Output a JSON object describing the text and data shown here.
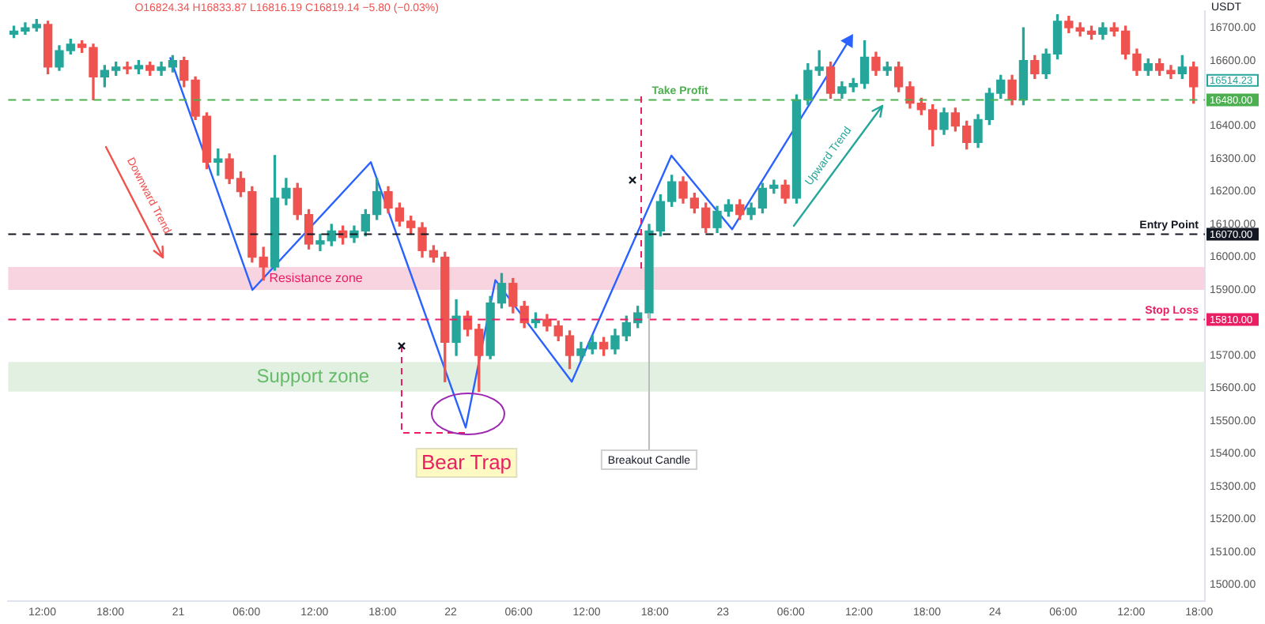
{
  "chart_data": {
    "type": "candlestick",
    "ylabel": "USDT",
    "x": [
      "--11-20T09:30",
      "--11-20T10:30",
      "--11-20T11:30",
      "--11-20T12:30",
      "--11-20T13:30",
      "--11-20T14:30",
      "--11-20T15:30",
      "--11-20T16:30",
      "--11-20T17:30",
      "--11-20T18:30",
      "--11-20T19:30",
      "--11-20T20:30",
      "--11-20T21:30",
      "--11-20T22:30",
      "--11-20T23:30",
      "--11-21T00:30",
      "--11-21T01:30",
      "--11-21T02:30",
      "--11-21T03:30",
      "--11-21T04:30",
      "--11-21T05:30",
      "--11-21T06:30",
      "--11-21T07:30",
      "--11-21T08:30",
      "--11-21T09:30",
      "--11-21T10:30",
      "--11-21T11:30",
      "--11-21T12:30",
      "--11-21T13:30",
      "--11-21T14:30",
      "--11-21T15:30",
      "--11-21T16:30",
      "--11-21T17:30",
      "--11-21T18:30",
      "--11-21T19:30",
      "--11-21T20:30",
      "--11-21T21:30",
      "--11-21T22:30",
      "--11-21T23:30",
      "--11-22T00:30",
      "--11-22T01:30",
      "--11-22T02:30",
      "--11-22T03:30",
      "--11-22T04:30",
      "--11-22T05:30",
      "--11-22T06:30",
      "--11-22T07:30",
      "--11-22T08:30",
      "--11-22T09:30",
      "--11-22T10:30",
      "--11-22T11:30",
      "--11-22T12:30",
      "--11-22T13:30",
      "--11-22T14:30",
      "--11-22T15:30",
      "--11-22T16:30",
      "--11-22T17:30",
      "--11-22T18:30",
      "--11-22T19:30",
      "--11-22T20:30",
      "--11-22T21:30",
      "--11-22T22:30",
      "--11-22T23:30",
      "--11-23T00:30",
      "--11-23T01:30",
      "--11-23T02:30",
      "--11-23T03:30",
      "--11-23T04:30",
      "--11-23T05:30",
      "--11-23T06:30",
      "--11-23T07:30",
      "--11-23T08:30",
      "--11-23T09:30",
      "--11-23T10:30",
      "--11-23T11:30",
      "--11-23T12:30",
      "--11-23T13:30",
      "--11-23T14:30",
      "--11-23T15:30",
      "--11-23T16:30",
      "--11-23T17:30",
      "--11-23T18:30",
      "--11-23T19:30",
      "--11-23T20:30",
      "--11-23T21:30",
      "--11-23T22:30",
      "--11-23T23:30",
      "--11-24T00:30",
      "--11-24T01:30",
      "--11-24T02:30",
      "--11-24T03:30",
      "--11-24T04:30",
      "--11-24T05:30",
      "--11-24T06:30",
      "--11-24T07:30",
      "--11-24T08:30",
      "--11-24T09:30",
      "--11-24T10:30",
      "--11-24T11:30",
      "--11-24T12:30",
      "--11-24T13:30",
      "--11-24T14:30",
      "--11-24T15:30",
      "--11-24T16:30",
      "--11-24T17:30"
    ],
    "ohlc": [
      [
        16680,
        16705,
        16670,
        16690
      ],
      [
        16690,
        16715,
        16680,
        16700
      ],
      [
        16700,
        16725,
        16690,
        16710
      ],
      [
        16710,
        16720,
        16560,
        16580
      ],
      [
        16580,
        16645,
        16570,
        16630
      ],
      [
        16630,
        16665,
        16620,
        16650
      ],
      [
        16650,
        16660,
        16625,
        16640
      ],
      [
        16640,
        16650,
        16480,
        16550
      ],
      [
        16550,
        16585,
        16520,
        16570
      ],
      [
        16570,
        16595,
        16555,
        16580
      ],
      [
        16580,
        16595,
        16560,
        16575
      ],
      [
        16575,
        16600,
        16560,
        16585
      ],
      [
        16585,
        16595,
        16555,
        16570
      ],
      [
        16570,
        16595,
        16555,
        16580
      ],
      [
        16580,
        16615,
        16565,
        16600
      ],
      [
        16600,
        16610,
        16520,
        16540
      ],
      [
        16540,
        16550,
        16420,
        16430
      ],
      [
        16430,
        16440,
        16270,
        16290
      ],
      [
        16290,
        16330,
        16250,
        16300
      ],
      [
        16300,
        16315,
        16225,
        16240
      ],
      [
        16240,
        16260,
        16185,
        16200
      ],
      [
        16200,
        16215,
        15985,
        16000
      ],
      [
        16000,
        16030,
        15930,
        15970
      ],
      [
        15970,
        16310,
        15960,
        16180
      ],
      [
        16180,
        16240,
        16160,
        16210
      ],
      [
        16210,
        16225,
        16115,
        16130
      ],
      [
        16130,
        16145,
        16025,
        16040
      ],
      [
        16040,
        16070,
        16020,
        16050
      ],
      [
        16050,
        16100,
        16035,
        16080
      ],
      [
        16080,
        16095,
        16040,
        16060
      ],
      [
        16060,
        16095,
        16045,
        16080
      ],
      [
        16080,
        16145,
        16065,
        16130
      ],
      [
        16130,
        16240,
        16115,
        16200
      ],
      [
        16200,
        16215,
        16135,
        16150
      ],
      [
        16150,
        16165,
        16095,
        16110
      ],
      [
        16110,
        16125,
        16070,
        16090
      ],
      [
        16090,
        16105,
        16000,
        16020
      ],
      [
        16020,
        16035,
        15985,
        16000
      ],
      [
        16000,
        16015,
        15620,
        15740
      ],
      [
        15740,
        15870,
        15700,
        15820
      ],
      [
        15820,
        15835,
        15760,
        15780
      ],
      [
        15780,
        15795,
        15590,
        15700
      ],
      [
        15700,
        15880,
        15690,
        15860
      ],
      [
        15860,
        15950,
        15845,
        15920
      ],
      [
        15920,
        15935,
        15830,
        15850
      ],
      [
        15850,
        15865,
        15785,
        15800
      ],
      [
        15800,
        15830,
        15785,
        15810
      ],
      [
        15810,
        15825,
        15775,
        15790
      ],
      [
        15790,
        15805,
        15745,
        15760
      ],
      [
        15760,
        15775,
        15660,
        15700
      ],
      [
        15700,
        15740,
        15685,
        15720
      ],
      [
        15720,
        15760,
        15705,
        15740
      ],
      [
        15740,
        15755,
        15700,
        15720
      ],
      [
        15720,
        15780,
        15705,
        15760
      ],
      [
        15760,
        15820,
        15745,
        15800
      ],
      [
        15800,
        15850,
        15785,
        15830
      ],
      [
        15830,
        16100,
        15815,
        16080
      ],
      [
        16080,
        16190,
        16065,
        16170
      ],
      [
        16170,
        16250,
        16155,
        16230
      ],
      [
        16230,
        16245,
        16165,
        16180
      ],
      [
        16180,
        16195,
        16135,
        16150
      ],
      [
        16150,
        16165,
        16075,
        16090
      ],
      [
        16090,
        16155,
        16075,
        16140
      ],
      [
        16140,
        16175,
        16125,
        16160
      ],
      [
        16160,
        16175,
        16115,
        16130
      ],
      [
        16130,
        16165,
        16115,
        16150
      ],
      [
        16150,
        16225,
        16135,
        16210
      ],
      [
        16210,
        16235,
        16195,
        16220
      ],
      [
        16220,
        16235,
        16165,
        16180
      ],
      [
        16180,
        16495,
        16165,
        16480
      ],
      [
        16480,
        16590,
        16465,
        16570
      ],
      [
        16570,
        16630,
        16555,
        16580
      ],
      [
        16580,
        16595,
        16485,
        16500
      ],
      [
        16500,
        16535,
        16485,
        16520
      ],
      [
        16520,
        16545,
        16505,
        16530
      ],
      [
        16530,
        16660,
        16515,
        16610
      ],
      [
        16610,
        16625,
        16555,
        16570
      ],
      [
        16570,
        16595,
        16555,
        16580
      ],
      [
        16580,
        16595,
        16505,
        16520
      ],
      [
        16520,
        16535,
        16455,
        16470
      ],
      [
        16470,
        16485,
        16435,
        16450
      ],
      [
        16450,
        16465,
        16340,
        16390
      ],
      [
        16390,
        16455,
        16375,
        16440
      ],
      [
        16440,
        16455,
        16385,
        16400
      ],
      [
        16400,
        16415,
        16330,
        16350
      ],
      [
        16350,
        16435,
        16335,
        16420
      ],
      [
        16420,
        16515,
        16405,
        16500
      ],
      [
        16500,
        16555,
        16485,
        16540
      ],
      [
        16540,
        16555,
        16465,
        16480
      ],
      [
        16480,
        16700,
        16465,
        16600
      ],
      [
        16600,
        16615,
        16545,
        16560
      ],
      [
        16560,
        16635,
        16545,
        16620
      ],
      [
        16620,
        16740,
        16605,
        16720
      ],
      [
        16720,
        16735,
        16685,
        16700
      ],
      [
        16700,
        16715,
        16675,
        16690
      ],
      [
        16690,
        16705,
        16665,
        16680
      ],
      [
        16680,
        16715,
        16665,
        16700
      ],
      [
        16700,
        16715,
        16675,
        16690
      ],
      [
        16690,
        16705,
        16605,
        16620
      ],
      [
        16620,
        16635,
        16555,
        16570
      ],
      [
        16570,
        16605,
        16555,
        16590
      ],
      [
        16590,
        16605,
        16555,
        16570
      ],
      [
        16570,
        16585,
        16545,
        16560
      ],
      [
        16560,
        16615,
        16545,
        16580
      ],
      [
        16580,
        16595,
        16470,
        16520
      ]
    ],
    "colors": [
      "#26a69a",
      "#26a69a",
      "#26a69a",
      "#ef5350",
      "#26a69a",
      "#26a69a",
      "#ef5350",
      "#ef5350",
      "#26a69a",
      "#26a69a",
      "#ef5350",
      "#26a69a",
      "#ef5350",
      "#26a69a",
      "#26a69a",
      "#ef5350",
      "#ef5350",
      "#ef5350",
      "#26a69a",
      "#ef5350",
      "#ef5350",
      "#ef5350",
      "#ef5350",
      "#26a69a",
      "#26a69a",
      "#ef5350",
      "#ef5350",
      "#26a69a",
      "#26a69a",
      "#ef5350",
      "#26a69a",
      "#26a69a",
      "#26a69a",
      "#ef5350",
      "#ef5350",
      "#ef5350",
      "#ef5350",
      "#ef5350",
      "#ef5350",
      "#26a69a",
      "#ef5350",
      "#ef5350",
      "#26a69a",
      "#26a69a",
      "#ef5350",
      "#ef5350",
      "#26a69a",
      "#ef5350",
      "#ef5350",
      "#ef5350",
      "#26a69a",
      "#26a69a",
      "#ef5350",
      "#26a69a",
      "#26a69a",
      "#26a69a",
      "#26a69a",
      "#26a69a",
      "#26a69a",
      "#ef5350",
      "#ef5350",
      "#ef5350",
      "#26a69a",
      "#26a69a",
      "#ef5350",
      "#26a69a",
      "#26a69a",
      "#26a69a",
      "#ef5350",
      "#26a69a",
      "#26a69a",
      "#26a69a",
      "#ef5350",
      "#26a69a",
      "#26a69a",
      "#26a69a",
      "#ef5350",
      "#26a69a",
      "#ef5350",
      "#ef5350",
      "#ef5350",
      "#ef5350",
      "#26a69a",
      "#ef5350",
      "#ef5350",
      "#26a69a",
      "#26a69a",
      "#26a69a",
      "#ef5350",
      "#26a69a",
      "#ef5350",
      "#26a69a",
      "#26a69a",
      "#ef5350",
      "#ef5350",
      "#ef5350",
      "#26a69a",
      "#ef5350",
      "#ef5350",
      "#ef5350",
      "#26a69a",
      "#ef5350",
      "#ef5350",
      "#26a69a",
      "#ef5350"
    ],
    "series": [
      {
        "type": "line",
        "color": "#2962ff",
        "x": [
          "--11-20T23:16",
          "--11-21T06:32",
          "--11-21T16:58",
          "--11-22T01:20",
          "--11-22T03:57",
          "--11-22T10:41",
          "--11-22T19:28",
          "--11-23T00:49",
          "--11-23T11:06"
        ],
        "values": [
          16610,
          15900,
          16290,
          15480,
          15930,
          15620,
          16310,
          16085,
          16660
        ]
      }
    ],
    "xlim": [
      "--11-20T09:00",
      "--11-24T18:30"
    ],
    "xticks": [
      {
        "value": "--11-20T12:00",
        "label": "12:00"
      },
      {
        "value": "--11-20T18:00",
        "label": "18:00"
      },
      {
        "value": "--11-21T00:00",
        "label": "21"
      },
      {
        "value": "--11-21T06:00",
        "label": "06:00"
      },
      {
        "value": "--11-21T12:00",
        "label": "12:00"
      },
      {
        "value": "--11-21T18:00",
        "label": "18:00"
      },
      {
        "value": "--11-22T00:00",
        "label": "22"
      },
      {
        "value": "--11-22T06:00",
        "label": "06:00"
      },
      {
        "value": "--11-22T12:00",
        "label": "12:00"
      },
      {
        "value": "--11-22T18:00",
        "label": "18:00"
      },
      {
        "value": "--11-23T00:00",
        "label": "23"
      },
      {
        "value": "--11-23T06:00",
        "label": "06:00"
      },
      {
        "value": "--11-23T12:00",
        "label": "12:00"
      },
      {
        "value": "--11-23T18:00",
        "label": "18:00"
      },
      {
        "value": "--11-24T00:00",
        "label": "24"
      },
      {
        "value": "--11-24T06:00",
        "label": "06:00"
      },
      {
        "value": "--11-24T12:00",
        "label": "12:00"
      },
      {
        "value": "--11-24T18:00",
        "label": "18:00"
      }
    ],
    "ylim": [
      14950,
      16750
    ],
    "yticks": [
      {
        "value": 15000,
        "label": "15000.00"
      },
      {
        "value": 15100,
        "label": "15100.00"
      },
      {
        "value": 15200,
        "label": "15200.00"
      },
      {
        "value": 15300,
        "label": "15300.00"
      },
      {
        "value": 15400,
        "label": "15400.00"
      },
      {
        "value": 15500,
        "label": "15500.00"
      },
      {
        "value": 15600,
        "label": "15600.00"
      },
      {
        "value": 15700,
        "label": "15700.00"
      },
      {
        "value": 15900,
        "label": "15900.00"
      },
      {
        "value": 16000,
        "label": "16000.00"
      },
      {
        "value": 16100,
        "label": "16100.00"
      },
      {
        "value": 16200,
        "label": "16200.00"
      },
      {
        "value": 16300,
        "label": "16300.00"
      },
      {
        "value": 16400,
        "label": "16400.00"
      },
      {
        "value": 16600,
        "label": "16600.00"
      },
      {
        "value": 16700,
        "label": "16700.00"
      }
    ],
    "ref_lines": [
      {
        "axis": "y",
        "value": 16480,
        "label": "Take Profit",
        "color": "#4caf50",
        "line_style": "dashed"
      },
      {
        "axis": "y",
        "value": 16070,
        "label": "Entry Point",
        "color": "#131722",
        "line_style": "dashed"
      },
      {
        "axis": "y",
        "value": 15810,
        "label": "Stop Loss",
        "color": "#e91e63",
        "line_style": "dashed"
      }
    ],
    "bands": [
      {
        "axis": "y",
        "from": 15900,
        "to": 15970,
        "label": "Resistance zone",
        "color": "#f8d4e0"
      },
      {
        "axis": "y",
        "from": 15590,
        "to": 15680,
        "label": "Support zone",
        "color": "#e2f0e2"
      }
    ],
    "annotations": [
      "O16824.34 H16833.87 L16816.19 C16819.14 −5.80 (−0.03%)",
      "16514.23",
      "Bear Trap",
      {
        "text": "Breakout Candle",
        "x": "--11-22T17:30",
        "y": 15830
      },
      "Downward Trend",
      "Upward Trend",
      "16480.00",
      "16070.00",
      "15810.00"
    ],
    "grid": false,
    "legend": false
  }
}
